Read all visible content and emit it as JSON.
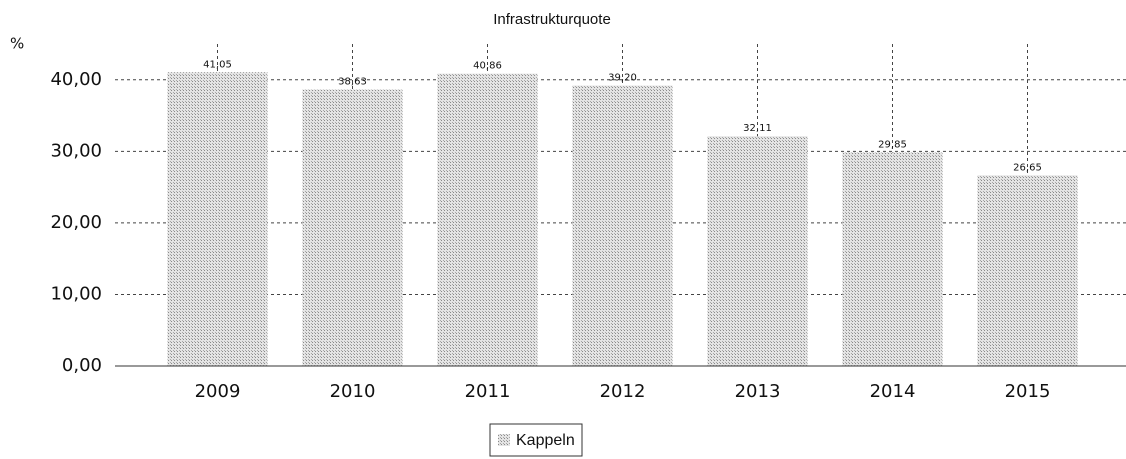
{
  "chart_data": {
    "type": "bar",
    "title": "Infrastrukturquote",
    "y_label": "%",
    "categories": [
      "2009",
      "2010",
      "2011",
      "2012",
      "2013",
      "2014",
      "2015"
    ],
    "series": [
      {
        "name": "Kappeln",
        "color": "#c8c8c8",
        "values": [
          41.05,
          38.63,
          40.86,
          39.2,
          32.11,
          29.85,
          26.65
        ],
        "value_labels": [
          "41,05",
          "38,63",
          "40,86",
          "39,20",
          "32,11",
          "29,85",
          "26,65"
        ]
      }
    ],
    "ylim": [
      0,
      45
    ],
    "yticks": [
      {
        "value": 0,
        "label": "0,00"
      },
      {
        "value": 10,
        "label": "10,00"
      },
      {
        "value": 20,
        "label": "20,00"
      },
      {
        "value": 30,
        "label": "30,00"
      },
      {
        "value": 40,
        "label": "40,00"
      }
    ],
    "grid": true,
    "legend": "bottom"
  }
}
